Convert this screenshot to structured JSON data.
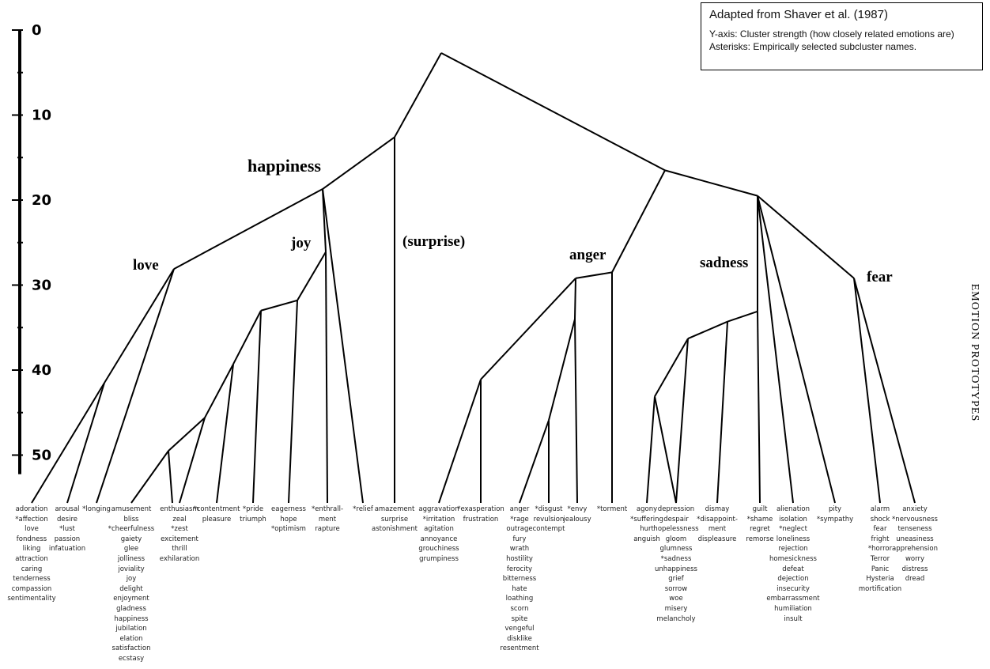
{
  "info_box": {
    "title": "Adapted from Shaver et al. (1987)",
    "lines": [
      "Y-axis: Cluster strength (how closely related emotions are)",
      "Asterisks: Empirically selected subcluster names."
    ]
  },
  "side_title": "EMOTION  PROTOTYPES",
  "axis": {
    "ticks": [
      0,
      10,
      20,
      30,
      40,
      50
    ],
    "min": 0,
    "max": 51.5
  },
  "prototypes": {
    "happiness": "happiness",
    "joy": "joy",
    "love": "love",
    "surprise": "(surprise)",
    "anger": "anger",
    "sadness": "sadness",
    "fear": "fear"
  },
  "tree": {
    "merges": [
      {
        "id": "root",
        "level": 2.7,
        "children": [
          "happy_surprise",
          "negative"
        ]
      },
      {
        "id": "happy_surprise",
        "level": 12.6,
        "children": [
          "happiness",
          "surprise"
        ]
      },
      {
        "id": "happiness",
        "level": 18.7,
        "children": [
          "love",
          "joy"
        ]
      },
      {
        "id": "love",
        "level": 28.1,
        "children": [
          "love_sub",
          "longing"
        ]
      },
      {
        "id": "love_sub",
        "level": 41.5,
        "children": [
          "affection",
          "lust"
        ]
      },
      {
        "id": "joy",
        "level": 26.1,
        "children": [
          "joy_a",
          "enthrallment"
        ]
      },
      {
        "id": "joy_a",
        "level": 31.8,
        "children": [
          "joy_b",
          "optimism"
        ]
      },
      {
        "id": "joy_b",
        "level": 33.0,
        "children": [
          "joy_c",
          "pride"
        ]
      },
      {
        "id": "joy_c",
        "level": 39.3,
        "children": [
          "joy_d",
          "contentment"
        ]
      },
      {
        "id": "joy_d",
        "level": 45.6,
        "children": [
          "joy_e",
          "zest"
        ]
      },
      {
        "id": "joy_e",
        "level": 49.5,
        "children": [
          "cheerfulness",
          "zest_inner"
        ]
      },
      {
        "id": "negative",
        "level": 16.5,
        "children": [
          "anger",
          "sad_fear"
        ]
      },
      {
        "id": "anger",
        "level": 28.5,
        "children": [
          "anger_a",
          "torment"
        ]
      },
      {
        "id": "anger_a",
        "level": 29.2,
        "children": [
          "anger_b",
          "envy"
        ]
      },
      {
        "id": "anger_b",
        "level": 41.1,
        "children": [
          "irritation",
          "exasperation"
        ]
      },
      {
        "id": "anger_c",
        "level": 45.9,
        "children": [
          "rage",
          "disgust"
        ]
      },
      {
        "id": "sad_fear",
        "level": 19.5,
        "children": [
          "sadness",
          "fear"
        ]
      },
      {
        "id": "fear",
        "level": 29.2,
        "children": [
          "horror",
          "nervousness"
        ]
      },
      {
        "id": "sad_a",
        "level": 33.1,
        "children": [
          "sad_b",
          "shame"
        ]
      },
      {
        "id": "sad_b",
        "level": 34.3,
        "children": [
          "sad_c",
          "disappointment"
        ]
      },
      {
        "id": "sad_c",
        "level": 36.3,
        "children": [
          "sad_d",
          "neglect_inner"
        ]
      },
      {
        "id": "sad_d",
        "level": 43.1,
        "children": [
          "suffering",
          "sadness_leaf"
        ]
      }
    ],
    "release_level": 51.5
  },
  "leaves": [
    {
      "id": "affection",
      "words": [
        "adoration",
        "*affection",
        "love",
        "fondness",
        "liking",
        "attraction",
        "caring",
        "tenderness",
        "compassion",
        "sentimentality"
      ]
    },
    {
      "id": "lust",
      "words": [
        "arousal",
        "desire",
        "*lust",
        "passion",
        "infatuation"
      ]
    },
    {
      "id": "longing",
      "words": [
        "*longing"
      ]
    },
    {
      "id": "cheerfulness",
      "words": [
        "amusement",
        "bliss",
        "*cheerfulness",
        "gaiety",
        "glee",
        "jolliness",
        "joviality",
        "joy",
        "delight",
        "enjoyment",
        "gladness",
        "happiness",
        "jubilation",
        "elation",
        "satisfaction",
        "ecstasy"
      ]
    },
    {
      "id": "zest",
      "words": [
        "enthusiasm",
        "zeal",
        "*zest",
        "excitement",
        "thrill",
        "exhilaration"
      ]
    },
    {
      "id": "contentment",
      "words": [
        "*contentment",
        "pleasure"
      ]
    },
    {
      "id": "pride",
      "words": [
        "*pride",
        "triumph"
      ]
    },
    {
      "id": "optimism",
      "words": [
        "eagerness",
        "hope",
        "*optimism"
      ]
    },
    {
      "id": "enthrallment",
      "words": [
        "*enthrall-",
        "ment",
        "rapture"
      ]
    },
    {
      "id": "relief",
      "words": [
        "*relief"
      ]
    },
    {
      "id": "surprise",
      "words": [
        "amazement",
        "surprise",
        "astonishment"
      ]
    },
    {
      "id": "irritation",
      "words": [
        "aggravation",
        "*irritation",
        "agitation",
        "annoyance",
        "grouchiness",
        "grumpiness"
      ]
    },
    {
      "id": "exasperation",
      "words": [
        "*exasperation",
        "frustration"
      ]
    },
    {
      "id": "rage",
      "words": [
        "anger",
        "*rage",
        "outrage",
        "fury",
        "wrath",
        "hostility",
        "ferocity",
        "bitterness",
        "hate",
        "loathing",
        "scorn",
        "spite",
        "vengeful",
        "disklike",
        "resentment"
      ]
    },
    {
      "id": "disgust",
      "words": [
        "*disgust",
        "revulsion",
        "contempt"
      ]
    },
    {
      "id": "envy",
      "words": [
        "*envy",
        "jealousy"
      ]
    },
    {
      "id": "torment",
      "words": [
        "*torment"
      ]
    },
    {
      "id": "suffering",
      "words": [
        "agony",
        "*suffering",
        "hurt",
        "anguish"
      ]
    },
    {
      "id": "sadness_leaf",
      "words": [
        "depression",
        "despair",
        "hopelessness",
        "gloom",
        "glumness",
        "*sadness",
        "unhappiness",
        "grief",
        "sorrow",
        "woe",
        "misery",
        "melancholy"
      ]
    },
    {
      "id": "disappointment",
      "words": [
        "dismay",
        "*disappoint-",
        "ment",
        "displeasure"
      ]
    },
    {
      "id": "shame",
      "words": [
        "guilt",
        "*shame",
        "regret",
        "remorse"
      ]
    },
    {
      "id": "neglect",
      "words": [
        "alienation",
        "isolation",
        "*neglect",
        "loneliness",
        "rejection",
        "homesickness",
        "defeat",
        "dejection",
        "insecurity",
        "embarrassment",
        "humiliation",
        "insult"
      ]
    },
    {
      "id": "sympathy",
      "words": [
        "pity",
        "*sympathy"
      ]
    },
    {
      "id": "horror",
      "words": [
        "alarm",
        "shock",
        "fear",
        "fright",
        "*horror",
        "Terror",
        "Panic",
        "Hysteria",
        "mortification"
      ]
    },
    {
      "id": "nervousness",
      "words": [
        "anxiety",
        "*nervousness",
        "tenseness",
        "uneasiness",
        "apprehension",
        "worry",
        "distress",
        "dread"
      ]
    }
  ]
}
